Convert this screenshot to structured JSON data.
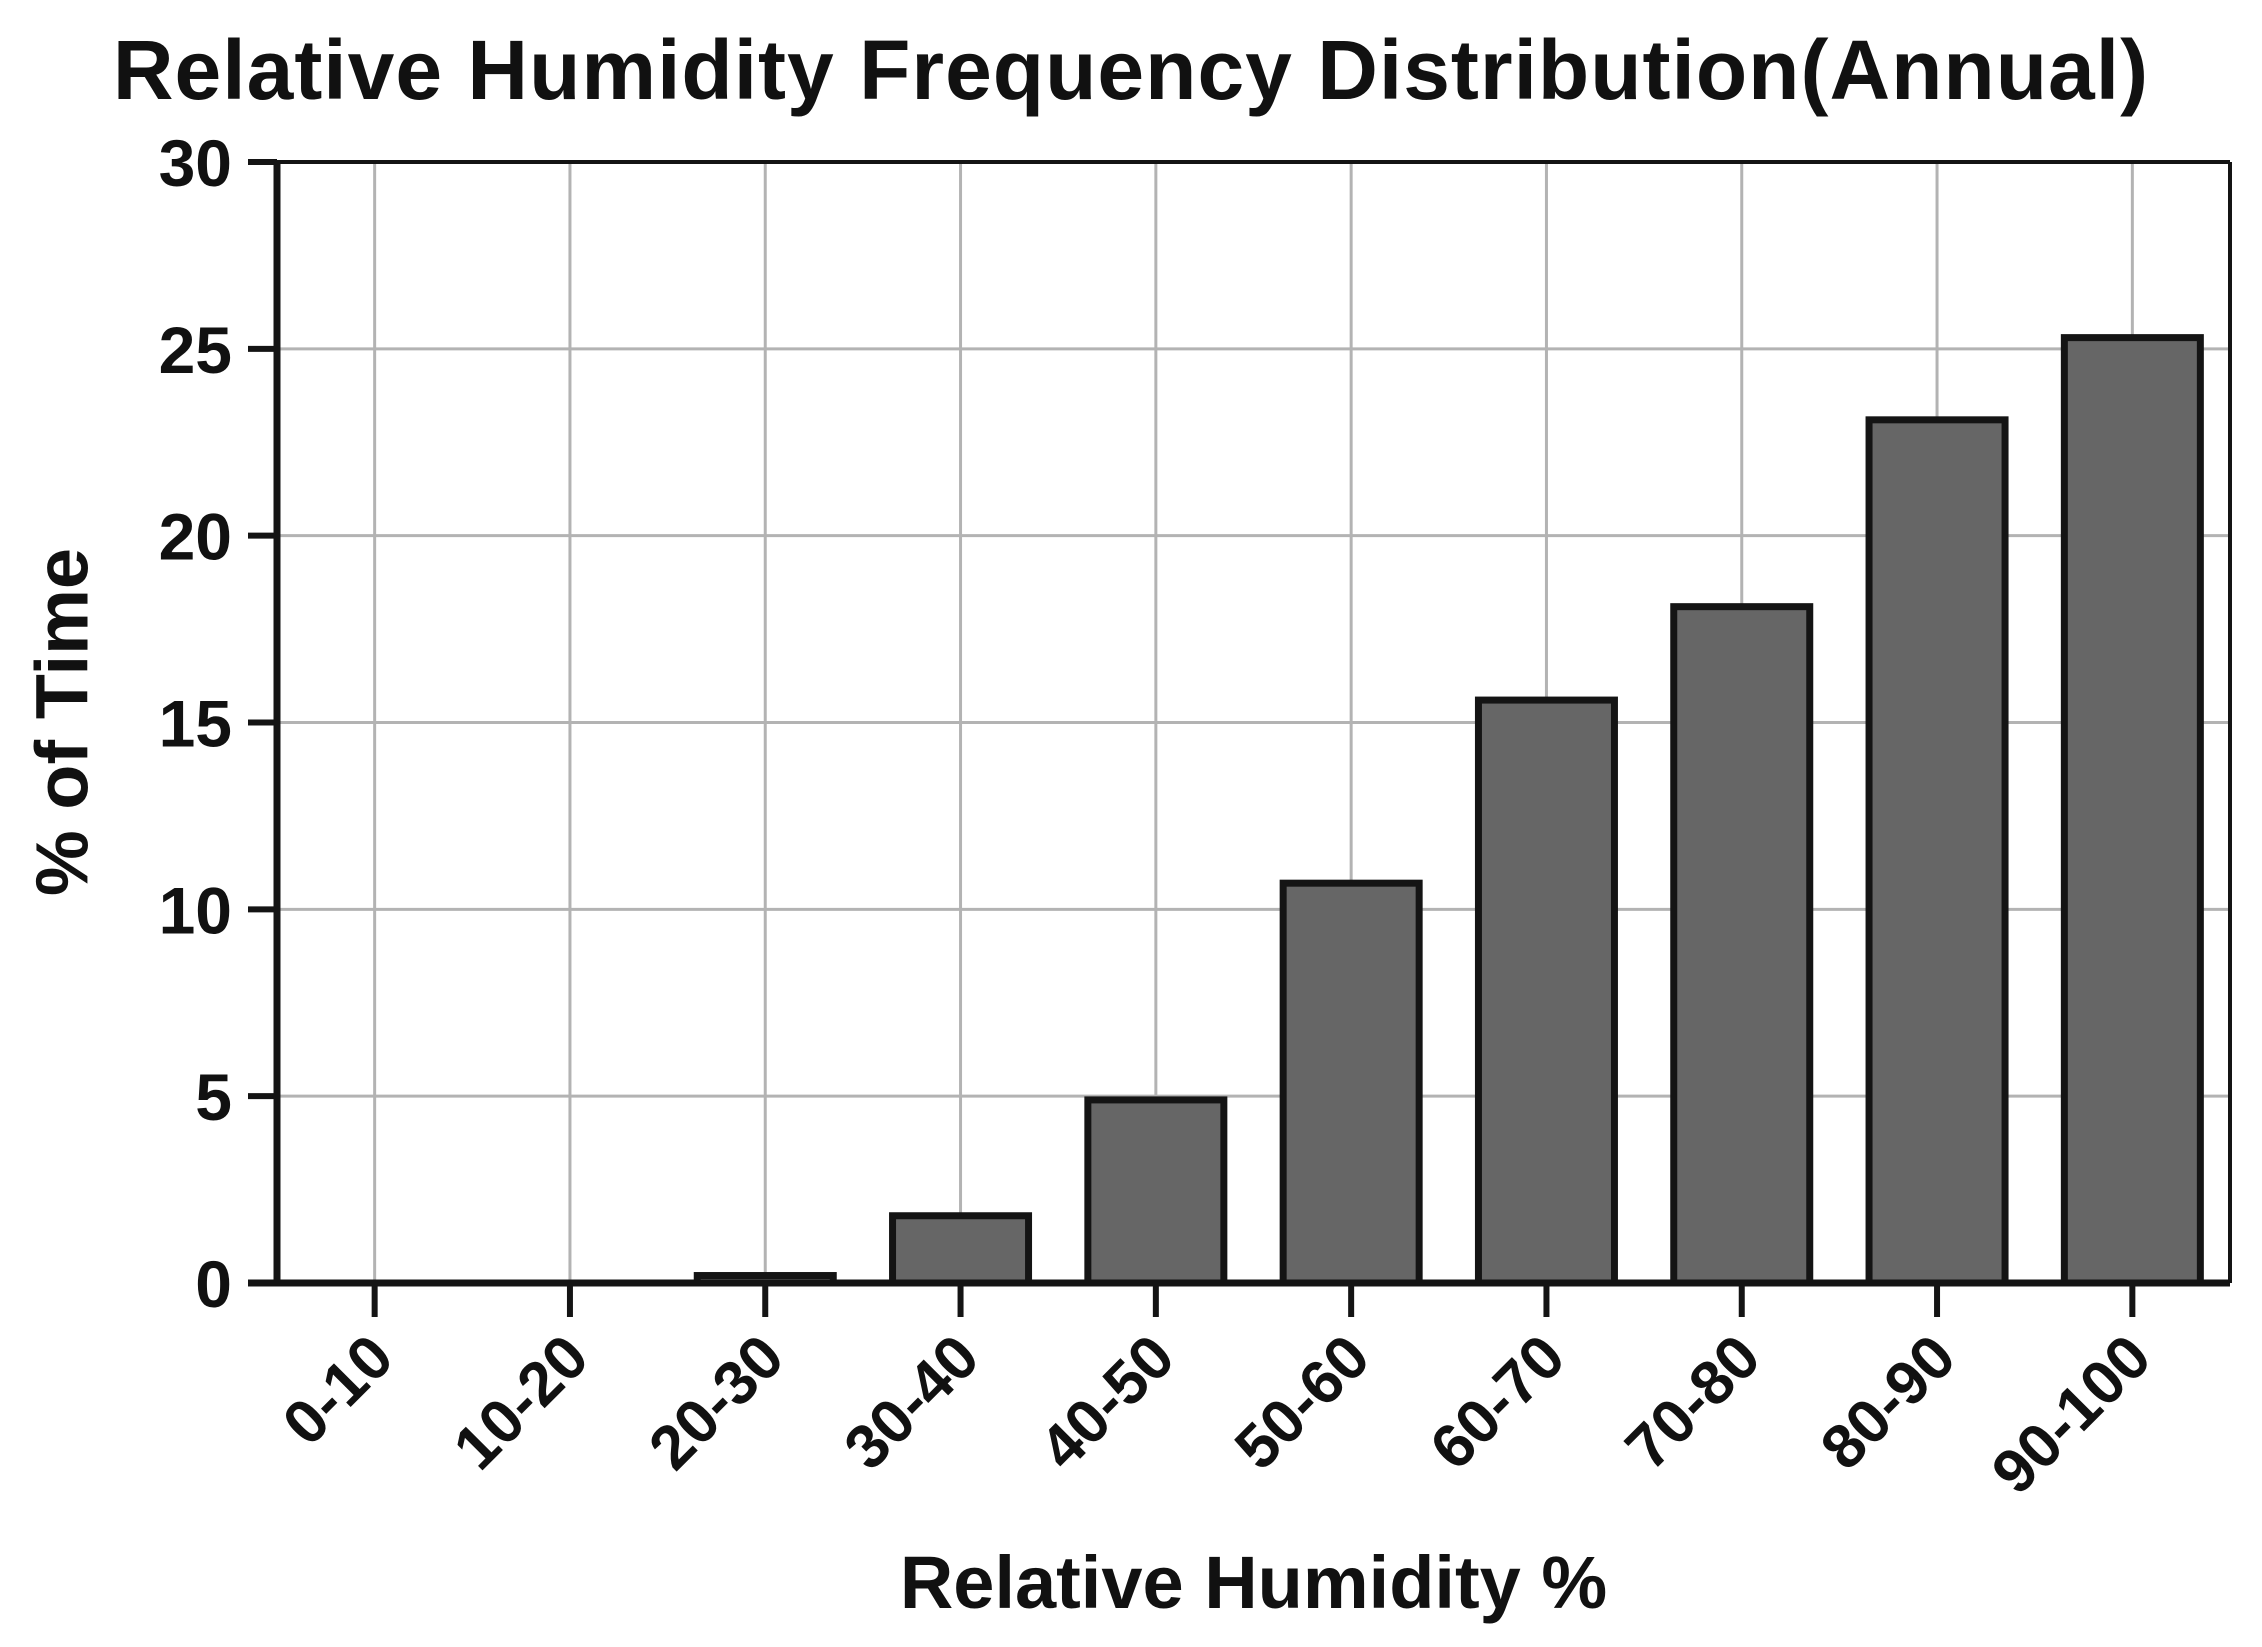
{
  "chart_data": {
    "type": "bar",
    "title": "Relative Humidity Frequency Distribution(Annual)",
    "xlabel": "Relative Humidity %",
    "ylabel": "% of Time",
    "categories": [
      "0-10",
      "10-20",
      "20-30",
      "30-40",
      "40-50",
      "50-60",
      "60-70",
      "70-80",
      "80-90",
      "90-100"
    ],
    "values": [
      0,
      0,
      0.2,
      1.8,
      4.9,
      10.7,
      15.6,
      18.1,
      23.1,
      25.3
    ],
    "ylim": [
      0,
      30
    ],
    "yticks": [
      0,
      5,
      10,
      15,
      20,
      25,
      30
    ],
    "grid": "on",
    "legend": "none",
    "bar_color": "#666666",
    "bar_border_color": "#141414",
    "gridline_color": "#b3b3b3",
    "axis_color": "#141414",
    "text_color": "#111111",
    "background_color": "#ffffff"
  }
}
